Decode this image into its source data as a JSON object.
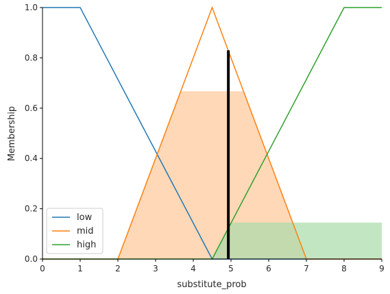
{
  "chart_data": {
    "type": "line",
    "xlabel": "substitute_prob",
    "ylabel": "Membership",
    "xlim": [
      0,
      9
    ],
    "ylim": [
      0,
      1
    ],
    "x_ticks": [
      "0",
      "1",
      "2",
      "3",
      "4",
      "5",
      "6",
      "7",
      "8",
      "9"
    ],
    "y_ticks": [
      "0.0",
      "0.2",
      "0.4",
      "0.6",
      "0.8",
      "1.0"
    ],
    "grid": false,
    "legend_position": "lower-left",
    "series": [
      {
        "name": "low",
        "color": "#1f77b4",
        "x": [
          0,
          1,
          4.5,
          9
        ],
        "y": [
          1,
          1,
          0,
          0
        ]
      },
      {
        "name": "mid",
        "color": "#ff7f0e",
        "x": [
          0,
          2,
          4.5,
          7,
          9
        ],
        "y": [
          0,
          0,
          1,
          0,
          0
        ]
      },
      {
        "name": "high",
        "color": "#2ca02c",
        "x": [
          0,
          4.5,
          8,
          9
        ],
        "y": [
          0,
          0,
          1,
          1
        ]
      }
    ],
    "activations": [
      {
        "series": "mid",
        "level": 0.667,
        "fill": "#ffc899"
      },
      {
        "series": "high",
        "level": 0.145,
        "fill": "#a8dba8"
      }
    ],
    "crisp_output": {
      "x": 4.93,
      "y": 0.83,
      "color": "#000000"
    }
  }
}
